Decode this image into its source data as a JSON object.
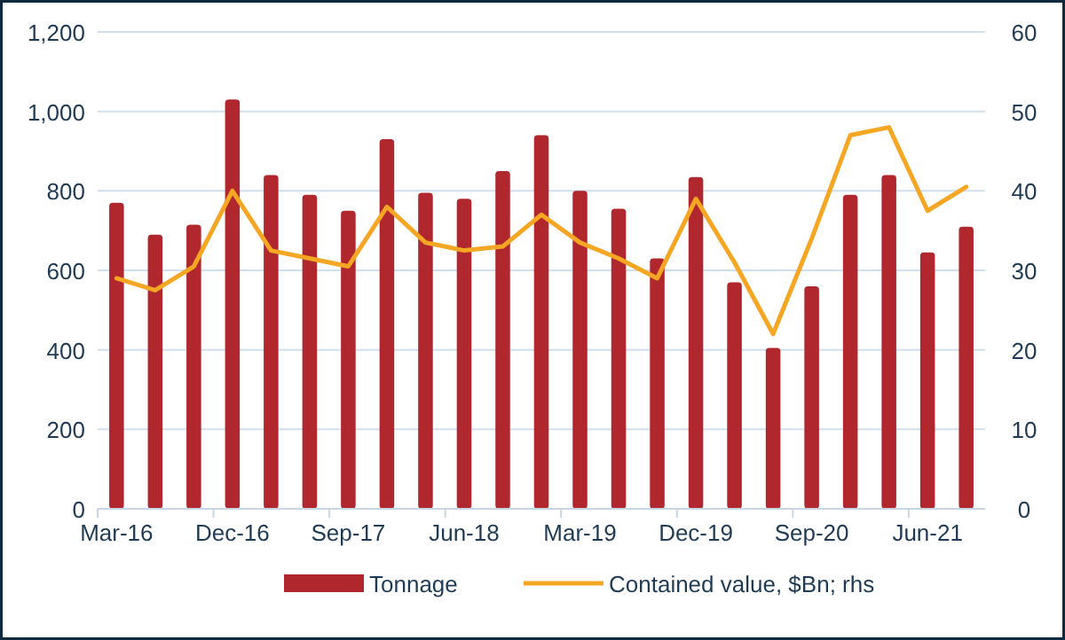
{
  "chart_data": {
    "type": "bar",
    "categories": [
      "Mar-16",
      null,
      null,
      "Dec-16",
      null,
      null,
      "Sep-17",
      null,
      null,
      "Jun-18",
      null,
      null,
      "Mar-19",
      null,
      null,
      "Dec-19",
      null,
      null,
      "Sep-20",
      null,
      null,
      "Jun-21",
      null
    ],
    "series": [
      {
        "name": "Tonnage",
        "color": "#b0272d",
        "values": [
          770,
          690,
          715,
          1030,
          840,
          790,
          750,
          930,
          795,
          780,
          850,
          940,
          800,
          755,
          630,
          835,
          570,
          405,
          560,
          790,
          840,
          645,
          710
        ]
      },
      {
        "name": "Contained value, $Bn; rhs",
        "type": "line",
        "axis": "y2",
        "color": "#f5a623",
        "values": [
          29,
          27.5,
          30.5,
          40,
          32.5,
          31.5,
          30.5,
          38,
          33.5,
          32.5,
          33,
          37,
          33.5,
          31.5,
          29,
          39,
          31,
          22,
          34,
          47,
          48,
          37.5,
          40.5
        ]
      }
    ],
    "ylim": [
      0,
      1200
    ],
    "yticks": [
      0,
      {
        "value": 200,
        "label": "200"
      },
      {
        "value": 400,
        "label": "400"
      },
      {
        "value": 600,
        "label": "600"
      },
      {
        "value": 800,
        "label": "800"
      },
      {
        "value": 1000,
        "label": "1,000"
      },
      {
        "value": 1200,
        "label": "1,200"
      }
    ],
    "y2lim": [
      0,
      60
    ],
    "y2ticks": [
      0,
      10,
      20,
      30,
      40,
      50,
      60
    ],
    "grid": "y",
    "legend": "bottom"
  }
}
